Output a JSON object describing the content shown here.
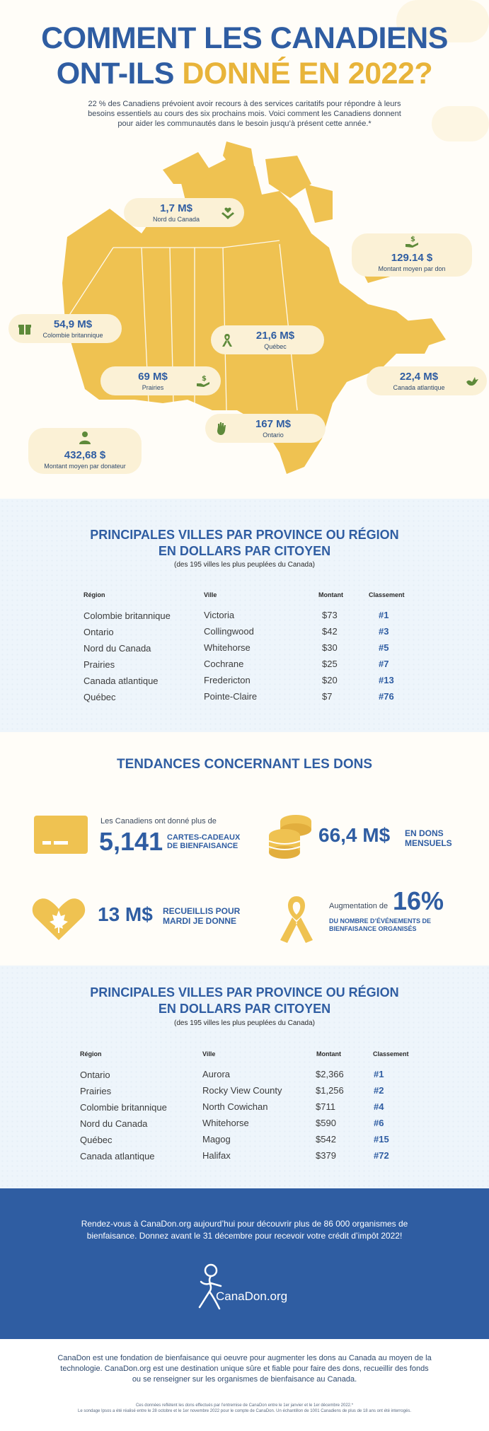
{
  "header": {
    "title_line1": "COMMENT LES CANADIENS",
    "title_line2_part1": "ONT-ILS",
    "title_line2_part2": "DONNÉ EN 2022?",
    "intro": "22 % des Canadiens prévoient avoir recours à des services caritatifs pour répondre à leurs besoins essentiels au cours des six prochains mois. Voici comment les Canadiens donnent pour aider les communautés dans le besoin jusqu’à présent cette année.*"
  },
  "map": {
    "nord": {
      "amount": "1,7 M$",
      "label": "Nord du Canada",
      "icon": "hands-heart-icon"
    },
    "cb": {
      "amount": "54,9 M$",
      "label": "Colombie britannique",
      "icon": "gift-box-icon"
    },
    "prairies": {
      "amount": "69 M$",
      "label": "Prairies",
      "icon": "hand-dollar-icon"
    },
    "quebec": {
      "amount": "21,6 M$",
      "label": "Québec",
      "icon": "ribbon-icon"
    },
    "ontario": {
      "amount": "167 M$",
      "label": "Ontario",
      "icon": "raised-hand-icon"
    },
    "atlantique": {
      "amount": "22,4 M$",
      "label": "Canada atlantique",
      "icon": "dove-icon"
    },
    "avg_don": {
      "amount": "129.14 $",
      "label": "Montant moyen par don",
      "icon": "hand-dollar-icon"
    },
    "avg_donor": {
      "amount": "432,68 $",
      "label": "Montant moyen par donateur",
      "icon": "person-icon"
    }
  },
  "table1": {
    "title_line1": "PRINCIPALES VILLES PAR PROVINCE OU RÉGION",
    "title_line2": "EN DOLLARS PAR CITOYEN",
    "subtitle": "(des 195 villes les plus peuplées du Canada)",
    "headers": [
      "Région",
      "Ville",
      "Montant",
      "Classement"
    ],
    "rows": [
      [
        "Colombie britannique",
        "Victoria",
        "$73",
        "#1"
      ],
      [
        "Ontario",
        "Collingwood",
        "$42",
        "#3"
      ],
      [
        "Nord du Canada",
        "Whitehorse",
        "$30",
        "#5"
      ],
      [
        "Prairies",
        "Cochrane",
        "$25",
        "#7"
      ],
      [
        "Canada atlantique",
        "Fredericton",
        "$20",
        "#13"
      ],
      [
        "Québec",
        "Pointe-Claire",
        "$7",
        "#76"
      ]
    ]
  },
  "trends": {
    "title": "TENDANCES CONCERNANT LES DONS",
    "gift": {
      "pre": "Les Canadiens ont donné plus de",
      "number": "5,141",
      "cap1": "CARTES-CADEAUX",
      "cap2": "DE BIENFAISANCE"
    },
    "monthly": {
      "number": "66,4 M$",
      "cap1": "EN DONS",
      "cap2": "MENSUELS"
    },
    "givingtuesday": {
      "number": "13 M$",
      "cap1": "RECUEILLIS POUR",
      "cap2": "MARDI JE DONNE"
    },
    "events": {
      "pre": "Augmentation de",
      "number": "16%",
      "cap1": "DU NOMBRE D’ÉVÉNEMENTS DE",
      "cap2": "BIENFAISANCE ORGANISÉS"
    }
  },
  "table2": {
    "title_line1": "PRINCIPALES VILLES PAR PROVINCE OU RÉGION",
    "title_line2": "EN DOLLARS PAR CITOYEN",
    "subtitle": "(des 195 villes les plus peuplées du Canada)",
    "headers": [
      "Région",
      "Ville",
      "Montant",
      "Classement"
    ],
    "rows": [
      [
        "Ontario",
        "Aurora",
        "$2,366",
        "#1"
      ],
      [
        "Prairies",
        "Rocky View County",
        "$1,256",
        "#2"
      ],
      [
        "Colombie britannique",
        "North Cowichan",
        "$711",
        "#4"
      ],
      [
        "Nord du Canada",
        "Whitehorse",
        "$590",
        "#6"
      ],
      [
        "Québec",
        "Magog",
        "$542",
        "#15"
      ],
      [
        "Canada atlantique",
        "Halifax",
        "$379",
        "#72"
      ]
    ]
  },
  "cta": {
    "text": "Rendez-vous à CanaDon.org aujourd’hui pour découvrir plus de 86 000 organismes de bienfaisance. Donnez avant le 31 décembre pour recevoir votre crédit d’impôt 2022!",
    "logo": "CanaDon.org"
  },
  "footer": {
    "about": "CanaDon est une fondation de bienfaisance qui oeuvre pour augmenter les dons au Canada au moyen de la technologie. CanaDon.org est une destination unique sûre et fiable pour faire des dons, recueillir des fonds ou se renseigner sur les organismes de bienfaisance au Canada.",
    "fine1": "Ces données reflètent les dons effectués par l’entremise de CanaDon entre le 1er janvier et le 1er décembre 2022.*",
    "fine2": "Le sondage Ipsos a été réalisé entre le 28 octobre et le 1er novembre 2022 pour le compte de CanaDon. Un échantillon de 1001 Canadiens de plus de 18 ans ont été interrogés."
  },
  "colors": {
    "blue": "#2f5da2",
    "gold": "#e8b43a",
    "green": "#5e8a3a",
    "light_blue_bg": "#eef5fb",
    "cream": "#fbf1d6"
  }
}
